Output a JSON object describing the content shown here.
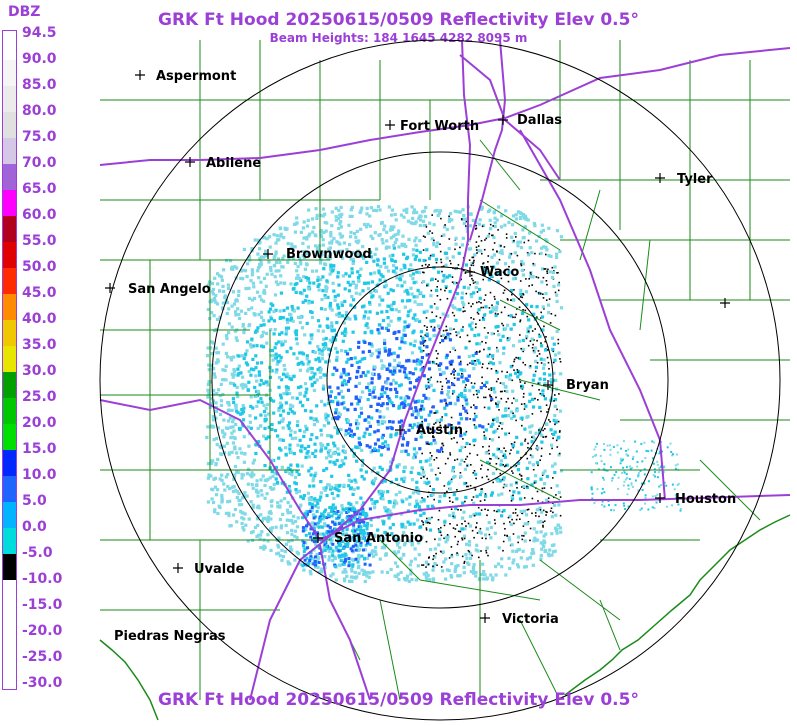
{
  "header": {
    "title": "GRK Ft Hood 20250615/0509 Reflectivity Elev 0.5°",
    "beam_heights": "Beam Heights: 184 1645 4282 8095 m"
  },
  "legend": {
    "unit": "DBZ",
    "levels": [
      {
        "label": "94.5",
        "color": "#ffffff"
      },
      {
        "label": "90.0",
        "color": "#f5f5f5"
      },
      {
        "label": "85.0",
        "color": "#ebebeb"
      },
      {
        "label": "80.0",
        "color": "#e0e0e0"
      },
      {
        "label": "75.0",
        "color": "#d5c7e6"
      },
      {
        "label": "70.0",
        "color": "#a064d8"
      },
      {
        "label": "65.0",
        "color": "#ff00ff"
      },
      {
        "label": "60.0",
        "color": "#b0001e"
      },
      {
        "label": "55.0",
        "color": "#e00000"
      },
      {
        "label": "50.0",
        "color": "#ff2a00"
      },
      {
        "label": "45.0",
        "color": "#ff8c00"
      },
      {
        "label": "40.0",
        "color": "#f0c800"
      },
      {
        "label": "35.0",
        "color": "#e6e600"
      },
      {
        "label": "30.0",
        "color": "#00a000"
      },
      {
        "label": "25.0",
        "color": "#00c800"
      },
      {
        "label": "20.0",
        "color": "#00e000"
      },
      {
        "label": "15.0",
        "color": "#0028ff"
      },
      {
        "label": "10.0",
        "color": "#1e64ff"
      },
      {
        "label": "5.0",
        "color": "#00b4ff"
      },
      {
        "label": "0.0",
        "color": "#00dcdc"
      },
      {
        "label": "-5.0",
        "color": "#000000"
      },
      {
        "label": "-10.0",
        "color": "#ffffff"
      },
      {
        "label": "-15.0",
        "color": "#ffffff"
      },
      {
        "label": "-20.0",
        "color": "#ffffff"
      },
      {
        "label": "-25.0",
        "color": "#ffffff"
      },
      {
        "label": "-30.0",
        "color": "#ffffff"
      }
    ]
  },
  "cities": [
    {
      "name": "Aspermont"
    },
    {
      "name": "Fort Worth"
    },
    {
      "name": "Dallas"
    },
    {
      "name": "Abilene"
    },
    {
      "name": "Tyler"
    },
    {
      "name": "Brownwood"
    },
    {
      "name": "Waco"
    },
    {
      "name": "San Angelo"
    },
    {
      "name": "Bryan"
    },
    {
      "name": "Austin"
    },
    {
      "name": "Houston"
    },
    {
      "name": "San Antonio"
    },
    {
      "name": "Uvalde"
    },
    {
      "name": "Victoria"
    },
    {
      "name": "Piedras Negras"
    }
  ],
  "colors": {
    "title": "#9b3fd6",
    "highway": "#9b3fd6",
    "county_line": "#1a8a1a",
    "coast": "#1a8a1a",
    "range_ring": "#000000",
    "echo_light": "#7fd9e6",
    "echo_mid": "#1ec8e6",
    "echo_blue": "#2060ff",
    "echo_clutter": "#000000"
  }
}
